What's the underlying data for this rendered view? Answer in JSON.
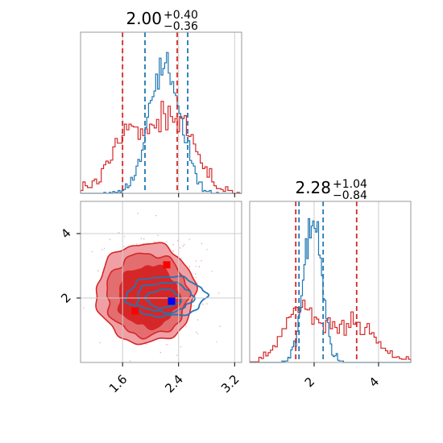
{
  "colors": {
    "red": "#d62728",
    "blue": "#1f77b4",
    "grid": "#cccccc",
    "fill_light": "#f0a0a4",
    "fill_mid": "#e46d70",
    "fill_dark": "#d62728"
  },
  "chart_data": [
    {
      "type": "histogram",
      "panel": "top-left",
      "parameter_index": 0,
      "title": {
        "median": "2.00",
        "upper": "+0.40",
        "lower": "−0.36"
      },
      "xlim": [
        1.0,
        3.3
      ],
      "quantile_lines": {
        "red": [
          1.6,
          2.38
        ],
        "blue": [
          1.92,
          2.53
        ]
      },
      "series": [
        {
          "color": "red",
          "bin_width": 0.033,
          "x": [
            1.0,
            3.3
          ],
          "peak_count_relative": 1.0,
          "center": 2.0,
          "spread": 0.42,
          "bimodal": [
            1.72,
            2.35
          ]
        },
        {
          "color": "blue",
          "bin_width": 0.026,
          "x": [
            1.35,
            2.95
          ],
          "peak_count_relative": 0.95,
          "center": 2.2,
          "spread": 0.22
        }
      ]
    },
    {
      "type": "histogram",
      "panel": "bottom-right",
      "parameter_index": 1,
      "title": {
        "median": "2.28",
        "upper": "+1.04",
        "lower": "−0.84"
      },
      "xlim": [
        0.0,
        5.0
      ],
      "xticks": [
        "2",
        "4"
      ],
      "xtick_values": [
        2,
        4
      ],
      "quantile_lines": {
        "red": [
          1.43,
          3.32
        ],
        "blue": [
          1.53,
          2.28
        ]
      },
      "series": [
        {
          "color": "red",
          "x": [
            0.0,
            5.0
          ],
          "modes": [
            1.62,
            3.35
          ],
          "note": "broad bimodal"
        },
        {
          "color": "blue",
          "x": [
            0.9,
            3.0
          ],
          "center": 1.95,
          "spread": 0.28
        }
      ]
    },
    {
      "type": "contour",
      "panel": "bottom-left",
      "xlim": [
        1.0,
        3.3
      ],
      "ylim": [
        0.0,
        5.0
      ],
      "xticks": [
        "1.6",
        "2.4",
        "3.2"
      ],
      "xtick_values": [
        1.6,
        2.4,
        3.2
      ],
      "yticks": [
        "2",
        "4"
      ],
      "ytick_values": [
        2,
        4
      ],
      "grid": true,
      "markers": [
        {
          "color": "red",
          "shape": "square",
          "x": 2.23,
          "y": 3.03
        },
        {
          "color": "red",
          "shape": "square",
          "x": 1.78,
          "y": 1.6
        },
        {
          "color": "blue",
          "shape": "square",
          "x": 2.3,
          "y": 1.9
        }
      ],
      "red_contours_filled": true,
      "blue_contours_filled": false
    }
  ]
}
